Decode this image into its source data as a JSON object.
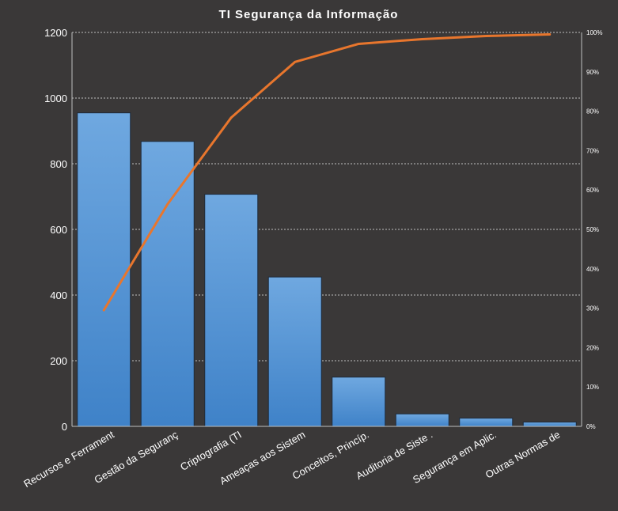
{
  "chart_data": {
    "type": "bar",
    "title": "TI Segurança da Informação",
    "categories": [
      "Recursos e Ferrament",
      "Gestão da Seguranç",
      "Criptografia (TI",
      "Ameaças aos Sistem",
      "Conceitos, Princíp.",
      "Auditoria de Siste .",
      "Segurança em Aplic.",
      "Outras Normas de"
    ],
    "series": [
      {
        "type": "bar",
        "axis": "left",
        "values": [
          955,
          868,
          707,
          455,
          150,
          38,
          25,
          13
        ]
      },
      {
        "type": "line",
        "axis": "right",
        "values": [
          0.295,
          0.564,
          0.784,
          0.925,
          0.971,
          0.983,
          0.991,
          0.995
        ]
      }
    ],
    "ylim": [
      0,
      1200
    ],
    "yticks": [
      "0",
      "200",
      "400",
      "600",
      "800",
      "1000",
      "1200"
    ],
    "y2lim": [
      0,
      1
    ],
    "y2ticks": [
      "0%",
      "10%",
      "20%",
      "30%",
      "40%",
      "50%",
      "60%",
      "70%",
      "80%",
      "90%",
      "100%"
    ],
    "grid": true,
    "legend": "none",
    "colors": {
      "background": "#3a3838",
      "bar_top": "#6fa8e0",
      "bar_bottom": "#3f82c8",
      "line": "#e8762d"
    }
  }
}
